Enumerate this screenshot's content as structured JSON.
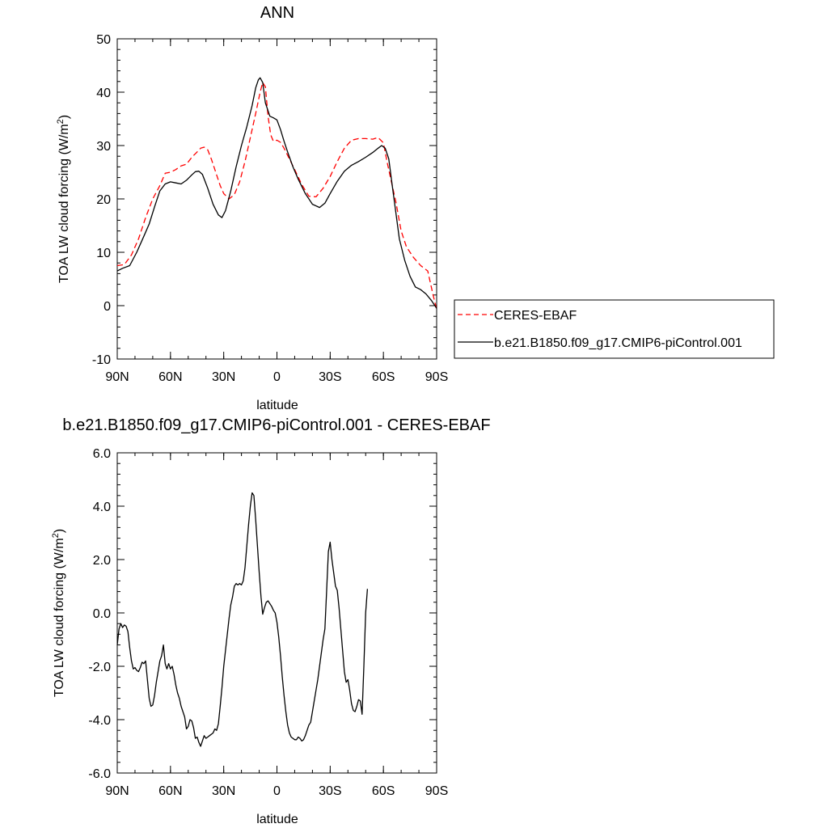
{
  "chart_data": [
    {
      "type": "line",
      "title": "ANN",
      "xlabel": "latitude",
      "ylabel_main": "TOA LW cloud forcing (W/m",
      "ylabel_sup": "2",
      "ylabel_close": ")",
      "xlim": [
        90,
        -90
      ],
      "ylim": [
        -10,
        50
      ],
      "x_ticks": [
        90,
        60,
        30,
        0,
        -30,
        -60,
        -90
      ],
      "x_tick_labels": [
        "90N",
        "60N",
        "30N",
        "0",
        "30S",
        "60S",
        "90S"
      ],
      "y_ticks": [
        -10,
        0,
        10,
        20,
        30,
        40,
        50
      ],
      "y_tick_labels": [
        "-10",
        "0",
        "10",
        "20",
        "30",
        "40",
        "50"
      ],
      "legend_position": "right",
      "series": [
        {
          "name": "CERES-EBAF",
          "color": "#ff0000",
          "dash": "dashed",
          "points": [
            [
              90,
              7.5
            ],
            [
              86,
              7.7
            ],
            [
              82,
              9.5
            ],
            [
              78,
              12.5
            ],
            [
              74,
              16.5
            ],
            [
              70,
              20
            ],
            [
              66,
              22.5
            ],
            [
              63,
              24.8
            ],
            [
              60,
              25
            ],
            [
              57,
              25.5
            ],
            [
              54,
              26.2
            ],
            [
              51,
              26.5
            ],
            [
              48,
              27.8
            ],
            [
              45,
              28.8
            ],
            [
              43,
              29.5
            ],
            [
              41,
              29.7
            ],
            [
              39,
              29.2
            ],
            [
              37,
              27.5
            ],
            [
              35,
              25.5
            ],
            [
              32,
              22.5
            ],
            [
              30,
              21
            ],
            [
              27,
              20
            ],
            [
              24,
              20.8
            ],
            [
              21,
              23.2
            ],
            [
              18,
              27
            ],
            [
              15,
              31.5
            ],
            [
              12,
              36
            ],
            [
              9.5,
              40
            ],
            [
              8,
              41.8
            ],
            [
              6.5,
              41
            ],
            [
              5,
              35.5
            ],
            [
              3.5,
              32
            ],
            [
              2,
              30.8
            ],
            [
              0,
              31
            ],
            [
              -2,
              30.6
            ],
            [
              -4,
              29.5
            ],
            [
              -7,
              27.5
            ],
            [
              -10,
              25.5
            ],
            [
              -14,
              22.7
            ],
            [
              -18,
              20.5
            ],
            [
              -22,
              20.4
            ],
            [
              -26,
              22
            ],
            [
              -30,
              24.2
            ],
            [
              -34,
              27
            ],
            [
              -38,
              29.5
            ],
            [
              -42,
              31
            ],
            [
              -46,
              31.3
            ],
            [
              -50,
              31.3
            ],
            [
              -54,
              31.2
            ],
            [
              -57,
              31.5
            ],
            [
              -60,
              30.5
            ],
            [
              -62,
              27
            ],
            [
              -64,
              24
            ],
            [
              -67,
              19.5
            ],
            [
              -70,
              14
            ],
            [
              -73,
              11
            ],
            [
              -77,
              9
            ],
            [
              -81,
              7.5
            ],
            [
              -85,
              6.5
            ],
            [
              -88,
              2
            ],
            [
              -90,
              -0.7
            ]
          ]
        },
        {
          "name": "b.e21.B1850.f09_g17.CMIP6-piControl.001",
          "color": "#000000",
          "dash": "solid",
          "points": [
            [
              90,
              6.5
            ],
            [
              87,
              7
            ],
            [
              83,
              7.5
            ],
            [
              79,
              10
            ],
            [
              75,
              13
            ],
            [
              72,
              15.3
            ],
            [
              69,
              18.5
            ],
            [
              66,
              21.5
            ],
            [
              63,
              22.8
            ],
            [
              60,
              23.2
            ],
            [
              57,
              23
            ],
            [
              54,
              22.8
            ],
            [
              51,
              23.5
            ],
            [
              48,
              24.5
            ],
            [
              46,
              25.1
            ],
            [
              44,
              25.2
            ],
            [
              42,
              24.6
            ],
            [
              39,
              22
            ],
            [
              36,
              19
            ],
            [
              33,
              17
            ],
            [
              31,
              16.5
            ],
            [
              29,
              17.8
            ],
            [
              26,
              21.5
            ],
            [
              23,
              26
            ],
            [
              20,
              30
            ],
            [
              17,
              33.5
            ],
            [
              14,
              37.5
            ],
            [
              12,
              40.8
            ],
            [
              10.5,
              42.3
            ],
            [
              9.5,
              42.7
            ],
            [
              8,
              41.8
            ],
            [
              6.5,
              38
            ],
            [
              4,
              35.5
            ],
            [
              2,
              35.2
            ],
            [
              0,
              34.8
            ],
            [
              -2,
              33
            ],
            [
              -4,
              30.8
            ],
            [
              -6,
              28.8
            ],
            [
              -9,
              26
            ],
            [
              -12,
              23.7
            ],
            [
              -16,
              21
            ],
            [
              -20,
              19
            ],
            [
              -24,
              18.4
            ],
            [
              -27,
              19.2
            ],
            [
              -30,
              21
            ],
            [
              -34,
              23.3
            ],
            [
              -38,
              25.2
            ],
            [
              -42,
              26.3
            ],
            [
              -46,
              27
            ],
            [
              -50,
              27.8
            ],
            [
              -54,
              28.7
            ],
            [
              -57,
              29.5
            ],
            [
              -59,
              30
            ],
            [
              -61,
              29.5
            ],
            [
              -63,
              27.5
            ],
            [
              -65,
              22.5
            ],
            [
              -67,
              17.5
            ],
            [
              -69,
              12.5
            ],
            [
              -72,
              8.5
            ],
            [
              -75,
              5.5
            ],
            [
              -78,
              3.5
            ],
            [
              -81,
              3
            ],
            [
              -84,
              2.2
            ],
            [
              -87,
              1
            ],
            [
              -90,
              -0.5
            ]
          ]
        }
      ]
    },
    {
      "type": "line",
      "title": "b.e21.B1850.f09_g17.CMIP6-piControl.001 - CERES-EBAF",
      "xlabel": "latitude",
      "ylabel_main": "TOA LW cloud forcing (W/m",
      "ylabel_sup": "2",
      "ylabel_close": ")",
      "xlim": [
        90,
        -90
      ],
      "ylim": [
        -6,
        6
      ],
      "x_ticks": [
        90,
        60,
        30,
        0,
        -30,
        -60,
        -90
      ],
      "x_tick_labels": [
        "90N",
        "60N",
        "30N",
        "0",
        "30S",
        "60S",
        "90S"
      ],
      "y_ticks": [
        -6,
        -4,
        -2,
        0,
        2,
        4,
        6
      ],
      "y_tick_labels": [
        "-6.0",
        "-4.0",
        "-2.0",
        "0.0",
        "2.0",
        "4.0",
        "6.0"
      ],
      "series": [
        {
          "color": "#000000",
          "dash": "solid",
          "points": [
            [
              90,
              -1.2
            ],
            [
              89,
              -0.6
            ],
            [
              88,
              -0.4
            ],
            [
              87,
              -0.55
            ],
            [
              86,
              -0.45
            ],
            [
              85,
              -0.5
            ],
            [
              84,
              -0.7
            ],
            [
              83,
              -1.3
            ],
            [
              82,
              -1.8
            ],
            [
              81,
              -2.1
            ],
            [
              80,
              -2.05
            ],
            [
              79,
              -2.15
            ],
            [
              78,
              -2.2
            ],
            [
              77,
              -2.05
            ],
            [
              76,
              -1.85
            ],
            [
              75,
              -1.9
            ],
            [
              74,
              -1.8
            ],
            [
              73,
              -2.5
            ],
            [
              72,
              -3.2
            ],
            [
              71,
              -3.5
            ],
            [
              70,
              -3.45
            ],
            [
              69,
              -3.1
            ],
            [
              68,
              -2.6
            ],
            [
              67,
              -2.2
            ],
            [
              66,
              -1.8
            ],
            [
              65,
              -1.6
            ],
            [
              64,
              -1.2
            ],
            [
              63,
              -1.9
            ],
            [
              62,
              -2.1
            ],
            [
              61,
              -1.9
            ],
            [
              60,
              -2.1
            ],
            [
              59,
              -2.0
            ],
            [
              58,
              -2.3
            ],
            [
              57,
              -2.7
            ],
            [
              56,
              -3.0
            ],
            [
              55,
              -3.2
            ],
            [
              54,
              -3.5
            ],
            [
              52,
              -3.9
            ],
            [
              51,
              -4.35
            ],
            [
              50,
              -4.25
            ],
            [
              49,
              -4.0
            ],
            [
              48,
              -4.05
            ],
            [
              47,
              -4.3
            ],
            [
              46,
              -4.7
            ],
            [
              45,
              -4.65
            ],
            [
              44,
              -4.85
            ],
            [
              43,
              -5.0
            ],
            [
              42,
              -4.8
            ],
            [
              41,
              -4.6
            ],
            [
              40,
              -4.7
            ],
            [
              39,
              -4.65
            ],
            [
              38,
              -4.6
            ],
            [
              36,
              -4.5
            ],
            [
              35,
              -4.35
            ],
            [
              34,
              -4.4
            ],
            [
              33,
              -4.15
            ],
            [
              32,
              -3.5
            ],
            [
              31,
              -2.8
            ],
            [
              30,
              -2.0
            ],
            [
              29,
              -1.4
            ],
            [
              28,
              -0.8
            ],
            [
              27,
              -0.2
            ],
            [
              26,
              0.3
            ],
            [
              25,
              0.6
            ],
            [
              24,
              1.0
            ],
            [
              23,
              1.1
            ],
            [
              22,
              1.05
            ],
            [
              21,
              1.1
            ],
            [
              20,
              1.05
            ],
            [
              19,
              1.2
            ],
            [
              18,
              1.7
            ],
            [
              17,
              2.5
            ],
            [
              16,
              3.3
            ],
            [
              15,
              4.0
            ],
            [
              14,
              4.5
            ],
            [
              13,
              4.4
            ],
            [
              12,
              3.5
            ],
            [
              11,
              2.5
            ],
            [
              10,
              1.5
            ],
            [
              9,
              0.6
            ],
            [
              8,
              -0.05
            ],
            [
              7,
              0.2
            ],
            [
              6,
              0.4
            ],
            [
              5,
              0.45
            ],
            [
              4,
              0.35
            ],
            [
              3,
              0.25
            ],
            [
              2,
              0.1
            ],
            [
              1,
              0.0
            ],
            [
              0,
              -0.35
            ],
            [
              -1,
              -0.9
            ],
            [
              -2,
              -1.6
            ],
            [
              -3,
              -2.4
            ],
            [
              -4,
              -3.1
            ],
            [
              -5,
              -3.7
            ],
            [
              -6,
              -4.2
            ],
            [
              -7,
              -4.5
            ],
            [
              -8,
              -4.65
            ],
            [
              -9,
              -4.7
            ],
            [
              -10,
              -4.75
            ],
            [
              -11,
              -4.75
            ],
            [
              -12,
              -4.65
            ],
            [
              -13,
              -4.7
            ],
            [
              -14,
              -4.8
            ],
            [
              -15,
              -4.75
            ],
            [
              -16,
              -4.6
            ],
            [
              -17,
              -4.4
            ],
            [
              -18,
              -4.2
            ],
            [
              -19,
              -4.1
            ],
            [
              -20,
              -3.7
            ],
            [
              -21,
              -3.3
            ],
            [
              -22,
              -2.9
            ],
            [
              -23,
              -2.5
            ],
            [
              -24,
              -2.0
            ],
            [
              -25,
              -1.5
            ],
            [
              -26,
              -1.0
            ],
            [
              -27,
              -0.6
            ],
            [
              -28,
              0.8
            ],
            [
              -29,
              2.3
            ],
            [
              -30,
              2.65
            ],
            [
              -31,
              2.0
            ],
            [
              -32,
              1.5
            ],
            [
              -33,
              1.0
            ],
            [
              -34,
              0.85
            ],
            [
              -35,
              0.2
            ],
            [
              -36,
              -0.6
            ],
            [
              -37,
              -1.4
            ],
            [
              -38,
              -2.2
            ],
            [
              -39,
              -2.6
            ],
            [
              -40,
              -2.5
            ],
            [
              -41,
              -2.9
            ],
            [
              -42,
              -3.4
            ],
            [
              -43,
              -3.65
            ],
            [
              -44,
              -3.7
            ],
            [
              -45,
              -3.5
            ],
            [
              -46,
              -3.25
            ],
            [
              -47,
              -3.3
            ],
            [
              -48,
              -3.8
            ],
            [
              -49,
              -2.0
            ],
            [
              -50,
              0.0
            ],
            [
              -51,
              0.9
            ]
          ]
        }
      ]
    }
  ],
  "legend": {
    "entries": [
      {
        "label": "CERES-EBAF",
        "color": "#ff0000",
        "dash": "dashed"
      },
      {
        "label": "b.e21.B1850.f09_g17.CMIP6-piControl.001",
        "color": "#000000",
        "dash": "solid"
      }
    ]
  }
}
